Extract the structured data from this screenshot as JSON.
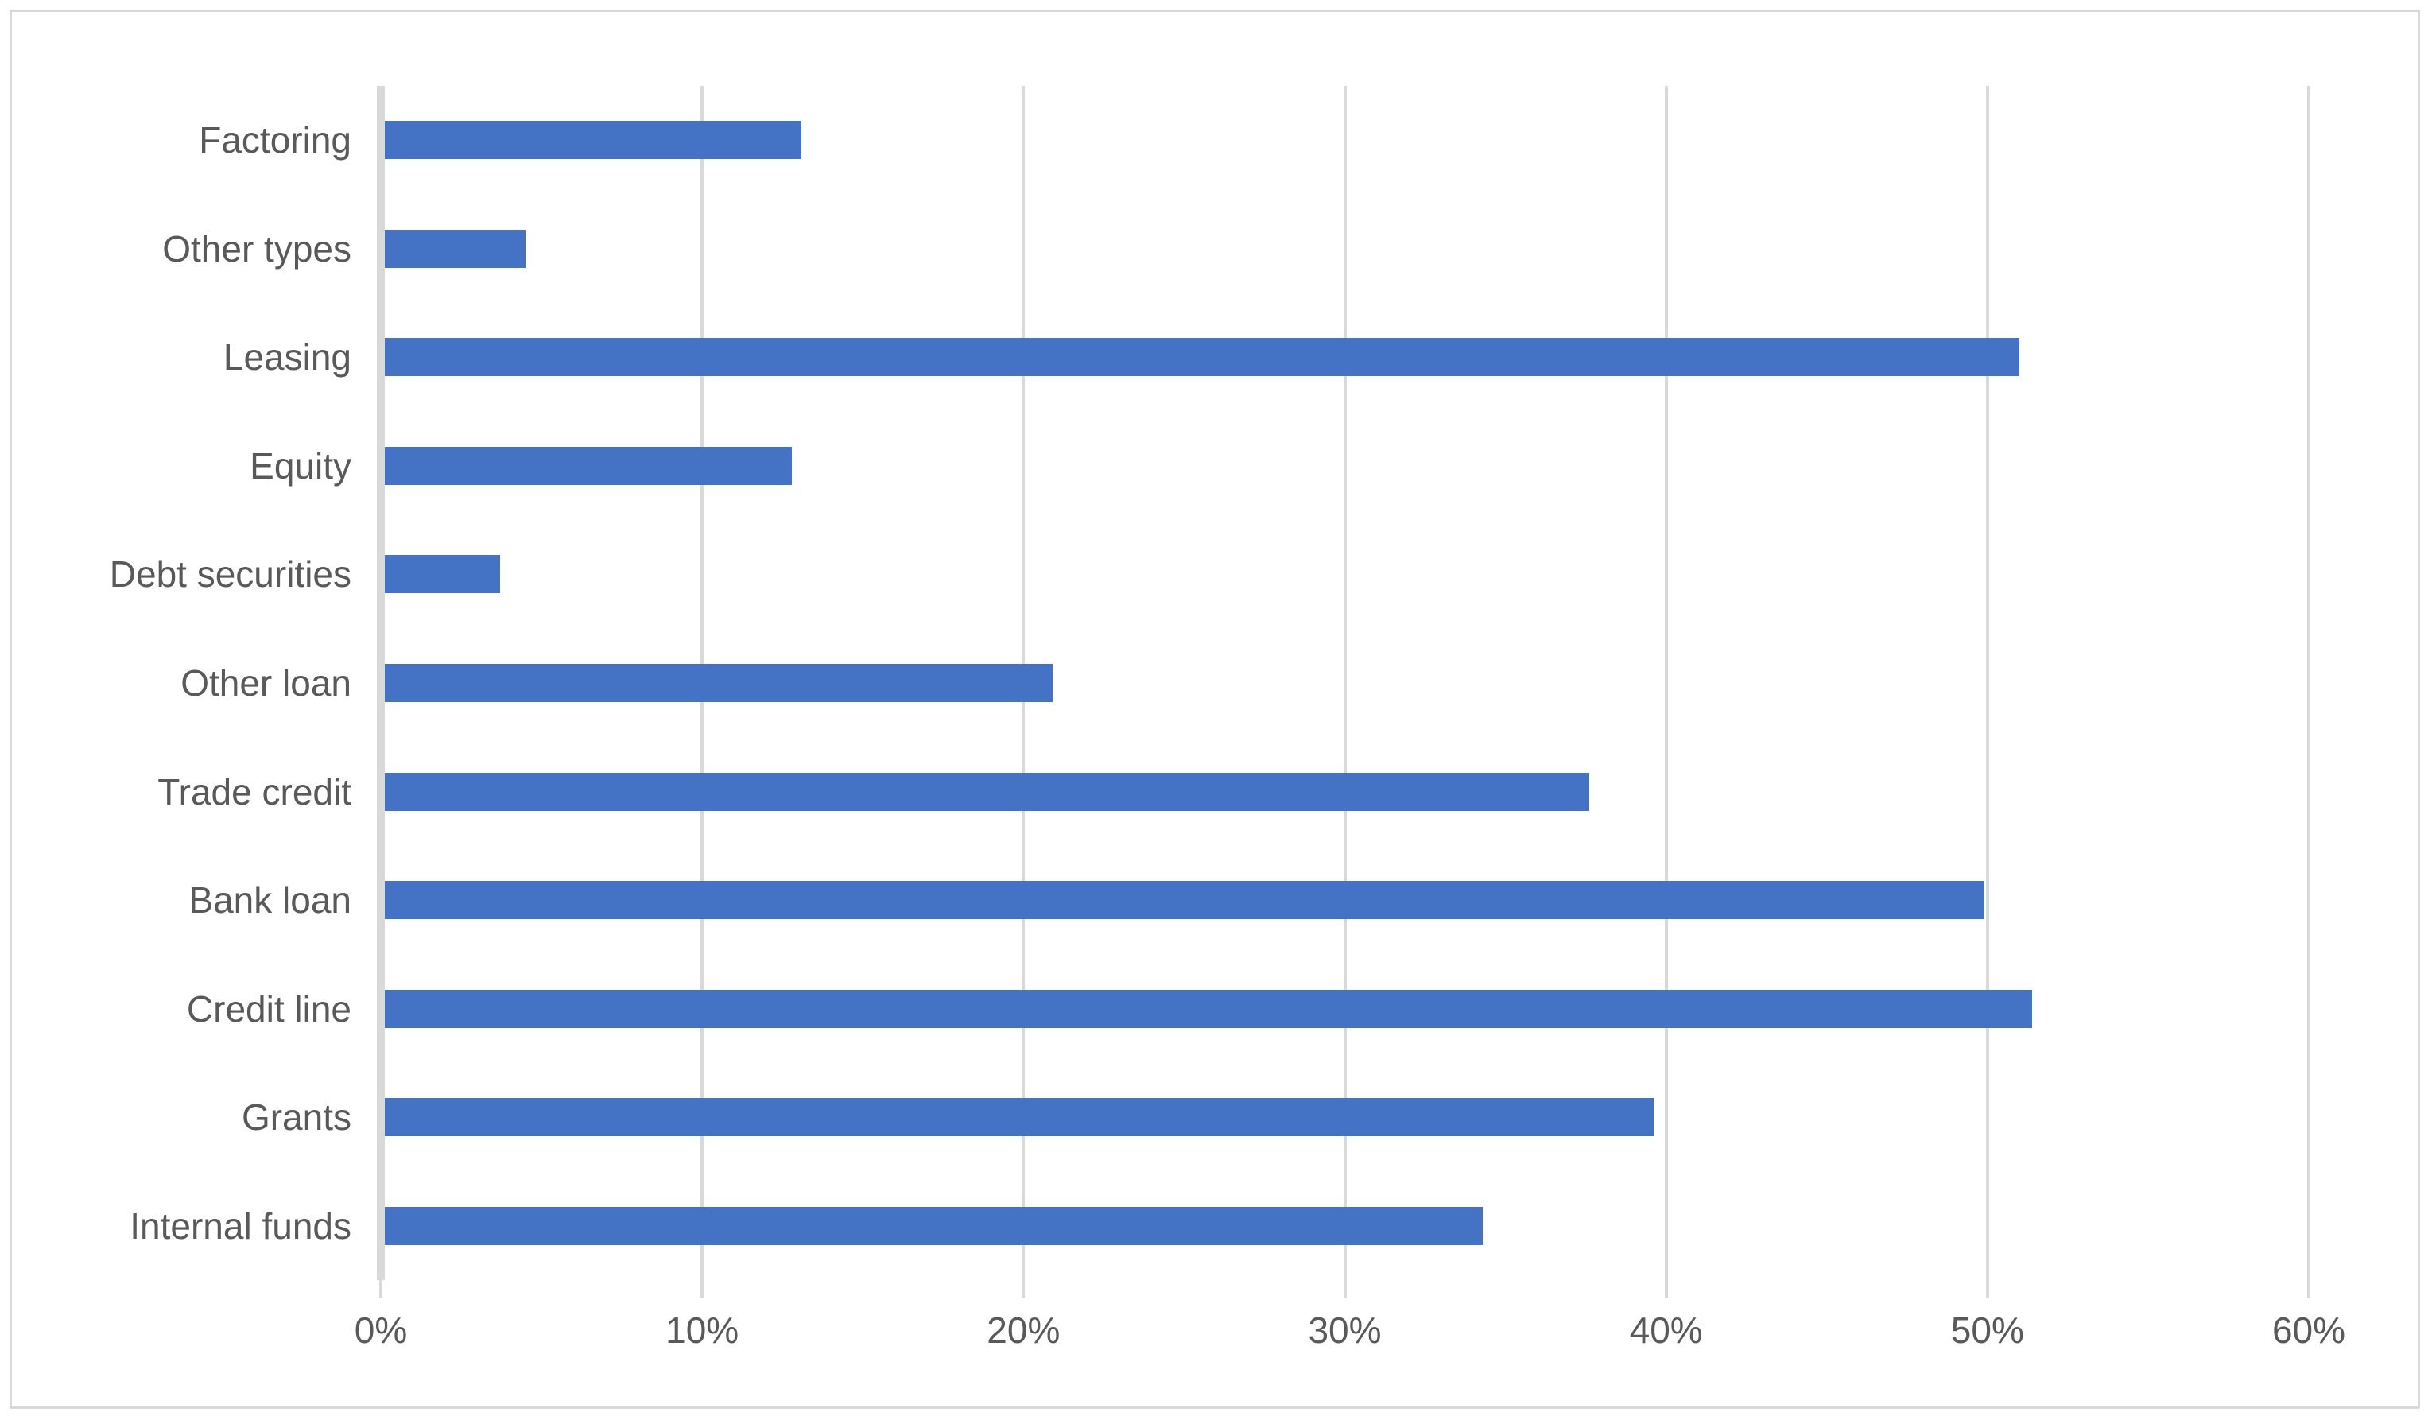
{
  "chart": {
    "background_color": "#FFFFFF",
    "frame_border_color": "#D9D9D9"
  },
  "chart_data": {
    "type": "bar",
    "orientation": "horizontal",
    "title": "",
    "xlabel": "",
    "ylabel": "",
    "unit": "%",
    "categories": [
      "Factoring",
      "Other types",
      "Leasing",
      "Equity",
      "Debt securities",
      "Other loan",
      "Trade credit",
      "Bank loan",
      "Credit line",
      "Grants",
      "Internal funds"
    ],
    "values": [
      13.1,
      4.5,
      51.0,
      12.8,
      3.7,
      20.9,
      37.6,
      49.9,
      51.4,
      39.6,
      34.3
    ],
    "x_axis": {
      "min": 0,
      "max": 60,
      "tick_step": 10,
      "tick_labels": [
        "0%",
        "10%",
        "20%",
        "30%",
        "40%",
        "50%",
        "60%"
      ]
    },
    "grid": true,
    "gridline_color": "#D9D9D9",
    "legend": false,
    "bar_color": "#4472C4",
    "axis_text_color": "#595959"
  }
}
